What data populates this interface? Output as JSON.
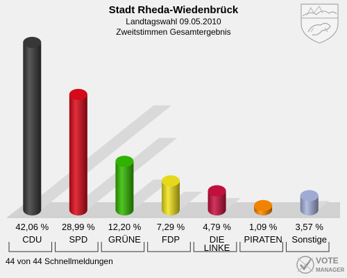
{
  "header": {
    "title": "Stadt Rheda-Wiedenbrück",
    "subtitle": "Landtagswahl 09.05.2010",
    "subtitle2": "Zweitstimmen Gesamtergebnis"
  },
  "footer": {
    "status": "44 von 44 Schnellmeldungen",
    "logo_text_line1": "VOTE",
    "logo_text_line2": "MANAGER"
  },
  "chart_data": {
    "type": "bar",
    "title": "Stadt Rheda-Wiedenbrück",
    "categories": [
      "CDU",
      "SPD",
      "GRÜNE",
      "FDP",
      "DIE LINKE",
      "PIRATEN",
      "Sonstige"
    ],
    "category_lines": [
      [
        "CDU"
      ],
      [
        "SPD"
      ],
      [
        "GRÜNE"
      ],
      [
        "FDP"
      ],
      [
        "DIE",
        "LINKE"
      ],
      [
        "PIRATEN"
      ],
      [
        "Sonstige"
      ]
    ],
    "values": [
      42.06,
      28.99,
      12.2,
      7.29,
      4.79,
      1.09,
      3.57
    ],
    "value_labels": [
      "42,06 %",
      "28,99 %",
      "12,20 %",
      "7,29 %",
      "4,79 %",
      "1,09 %",
      "3,57 %"
    ],
    "colors": [
      "#3a3a3a",
      "#dd0a1a",
      "#33bb00",
      "#f2e41c",
      "#cc1140",
      "#ff8a00",
      "#a8b4de"
    ],
    "unit": "%",
    "legend": "none",
    "grid": false
  }
}
